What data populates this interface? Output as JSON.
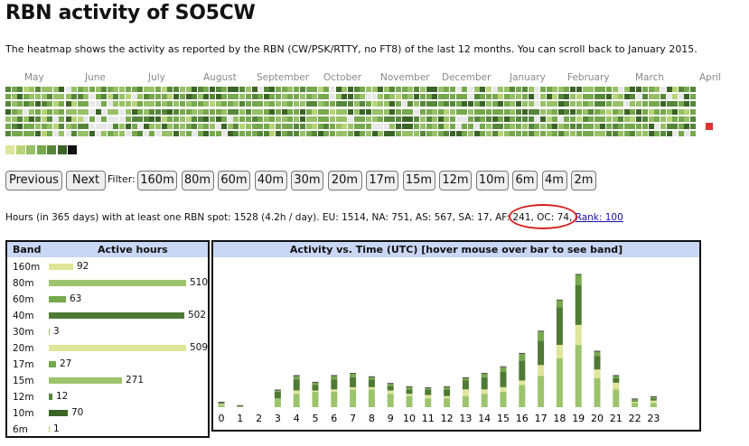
{
  "page": {
    "title": "RBN activity of SO5CW",
    "intro": "The heatmap shows the activity as reported by the RBN (CW/PSK/RTTY, no FT8) of the last 12 months. You can scroll back to January 2015."
  },
  "heatmap": {
    "months": [
      "May",
      "June",
      "July",
      "August",
      "September",
      "October",
      "November",
      "December",
      "January",
      "February",
      "March",
      "April"
    ],
    "legend_colors": [
      "#dfe59a",
      "#b8d478",
      "#97c067",
      "#76a84d",
      "#55863a",
      "#3b6427",
      "#111111"
    ],
    "highlight_color": "#e03030"
  },
  "controls": {
    "previous_label": "Previous",
    "next_label": "Next",
    "filter_label": "Filter:",
    "band_filters": [
      "160m",
      "80m",
      "60m",
      "40m",
      "30m",
      "20m",
      "17m",
      "15m",
      "12m",
      "10m",
      "6m",
      "4m",
      "2m"
    ]
  },
  "summary": {
    "text": "Hours (in 365 days) with at least one RBN spot: 1528 (4.2h / day). EU: 1514, NA: 751, AS: 567, SA: 17, AF: 241, OC: 74,",
    "rank_label": "Rank: 100"
  },
  "band_table": {
    "band_header": "Band",
    "hours_header": "Active hours",
    "rows": [
      {
        "band": "160m",
        "hours": 92,
        "color": "#dfe59a"
      },
      {
        "band": "80m",
        "hours": 510,
        "color": "#9cc46c"
      },
      {
        "band": "60m",
        "hours": 63,
        "color": "#76a84d"
      },
      {
        "band": "40m",
        "hours": 502,
        "color": "#4f7a35"
      },
      {
        "band": "30m",
        "hours": 3,
        "color": "#97c067"
      },
      {
        "band": "20m",
        "hours": 509,
        "color": "#dfe59a"
      },
      {
        "band": "17m",
        "hours": 27,
        "color": "#76a84d"
      },
      {
        "band": "15m",
        "hours": 271,
        "color": "#9cc46c"
      },
      {
        "band": "12m",
        "hours": 12,
        "color": "#55863a"
      },
      {
        "band": "10m",
        "hours": 70,
        "color": "#3b6427"
      },
      {
        "band": "6m",
        "hours": 1,
        "color": "#b8d478"
      }
    ]
  },
  "chart_data": {
    "type": "bar",
    "title": "Activity vs. Time (UTC) [hover mouse over bar to see band]",
    "categories": [
      "0",
      "1",
      "2",
      "3",
      "4",
      "5",
      "6",
      "7",
      "8",
      "9",
      "10",
      "11",
      "12",
      "13",
      "14",
      "15",
      "16",
      "17",
      "18",
      "19",
      "20",
      "21",
      "22",
      "23"
    ],
    "stacked": true,
    "series": [
      {
        "color": "#9cc46c",
        "values": [
          2,
          1,
          0,
          8,
          12,
          14,
          14,
          16,
          16,
          12,
          10,
          8,
          8,
          10,
          12,
          14,
          20,
          28,
          44,
          56,
          26,
          16,
          4,
          4
        ]
      },
      {
        "color": "#dfe59a",
        "values": [
          1,
          0,
          0,
          0,
          3,
          1,
          2,
          2,
          2,
          3,
          2,
          3,
          2,
          6,
          4,
          4,
          4,
          10,
          12,
          18,
          8,
          6,
          1,
          2
        ]
      },
      {
        "color": "#4f7a35",
        "values": [
          1,
          0,
          0,
          6,
          10,
          5,
          9,
          9,
          7,
          4,
          4,
          5,
          6,
          8,
          11,
          14,
          18,
          22,
          34,
          36,
          12,
          4,
          1,
          2
        ]
      },
      {
        "color": "#76a84d",
        "values": [
          0,
          0,
          0,
          1,
          3,
          2,
          3,
          3,
          2,
          2,
          2,
          1,
          2,
          2,
          3,
          4,
          6,
          8,
          6,
          9,
          4,
          2,
          1,
          1
        ]
      }
    ],
    "ylim": [
      0,
      130
    ]
  }
}
